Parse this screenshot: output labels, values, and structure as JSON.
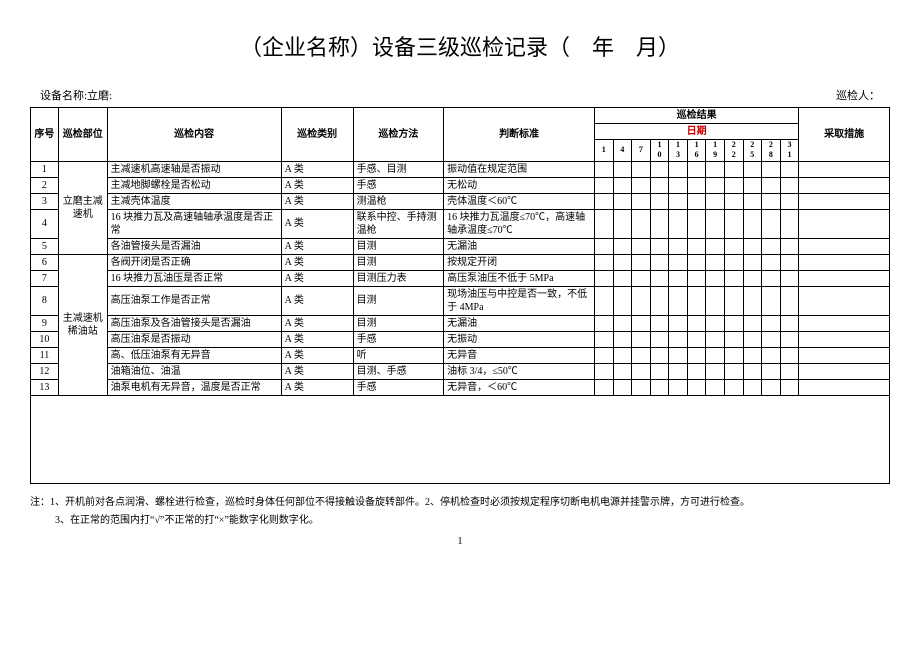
{
  "title": "（企业名称）设备三级巡检记录（　年　月）",
  "meta": {
    "equip_label": "设备名称:立磨:",
    "inspector_label": "巡检人："
  },
  "headers": {
    "seq": "序号",
    "part": "巡检部位",
    "content": "巡检内容",
    "category": "巡检类别",
    "method": "巡检方法",
    "criteria": "判断标准",
    "result": "巡检结果",
    "date": "日期",
    "action": "采取措施"
  },
  "date_cols": [
    "1",
    "4",
    "7",
    "1\n0",
    "1\n3",
    "1\n6",
    "1\n9",
    "2\n2",
    "2\n5",
    "2\n8",
    "3\n1"
  ],
  "groups": [
    {
      "part": "立磨主减速机",
      "rows": [
        {
          "seq": "1",
          "content": "主减速机高速轴是否振动",
          "cat": "A 类",
          "method": "手感、目测",
          "crit": "振动值在规定范围"
        },
        {
          "seq": "2",
          "content": "主减地脚螺栓是否松动",
          "cat": "A 类",
          "method": "手感",
          "crit": "无松动"
        },
        {
          "seq": "3",
          "content": "主减壳体温度",
          "cat": "A 类",
          "method": "测温枪",
          "crit": "壳体温度＜60℃"
        },
        {
          "seq": "4",
          "content": "16 块推力瓦及高速轴轴承温度是否正常",
          "cat": "A 类",
          "method": "联系中控、手持测温枪",
          "crit": "16 块推力瓦温度≤70℃，高速轴轴承温度≤70℃"
        },
        {
          "seq": "5",
          "content": "各油管接头是否漏油",
          "cat": "A 类",
          "method": "目测",
          "crit": "无漏油"
        }
      ]
    },
    {
      "part": "主减速机稀油站",
      "rows": [
        {
          "seq": "6",
          "content": "各阀开闭是否正确",
          "cat": "A 类",
          "method": "目测",
          "crit": "按规定开闭"
        },
        {
          "seq": "7",
          "content": "16 块推力瓦油压是否正常",
          "cat": "A 类",
          "method": "目测压力表",
          "crit": "高压泵油压不低于 5MPa"
        },
        {
          "seq": "8",
          "content": "高压油泵工作是否正常",
          "cat": "A 类",
          "method": "目测",
          "crit": "现场油压与中控是否一致，不低于 4MPa"
        },
        {
          "seq": "9",
          "content": "高压油泵及各油管接头是否漏油",
          "cat": "A 类",
          "method": "目测",
          "crit": "无漏油"
        },
        {
          "seq": "10",
          "content": "高压油泵是否振动",
          "cat": "A 类",
          "method": "手感",
          "crit": "无振动"
        },
        {
          "seq": "11",
          "content": "高、低压油泵有无异音",
          "cat": "A 类",
          "method": "听",
          "crit": "无异音"
        },
        {
          "seq": "12",
          "content": "油箱油位、油温",
          "cat": "A 类",
          "method": "目测、手感",
          "crit": "油标 3/4，≤50℃"
        },
        {
          "seq": "13",
          "content": "油泵电机有无异音，温度是否正常",
          "cat": "A 类",
          "method": "手感",
          "crit": "无异音，＜60℃"
        }
      ]
    }
  ],
  "notes": {
    "line1": "注：1、开机前对各点润滑、螺栓进行检查，巡检时身体任何部位不得接触设备旋转部件。2、停机检查时必须按规定程序切断电机电源并挂警示牌，方可进行检查。",
    "line2": "3、在正常的范围内打“√”不正常的打“×”能数字化则数字化。"
  },
  "page": "1"
}
